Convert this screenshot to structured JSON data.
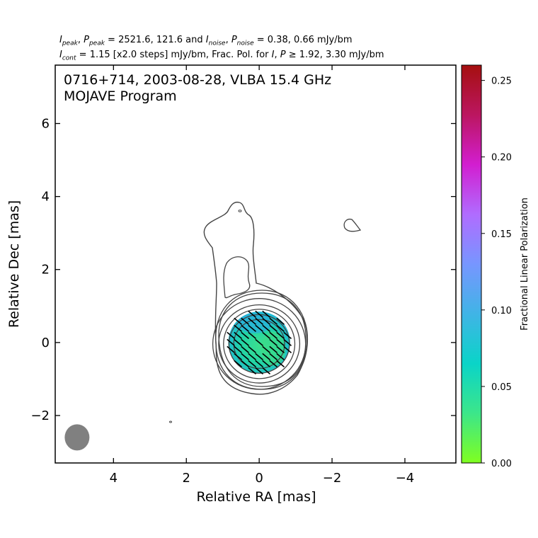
{
  "header": {
    "line1": {
      "sym1": "I",
      "sub1": "peak",
      "sep1": ", ",
      "sym2": "P",
      "sub2": "peak",
      "mid": " = 2521.6, 121.6 and ",
      "sym3": "I",
      "sub3": "noise",
      "sep2": ", ",
      "sym4": "P",
      "sub4": "noise",
      "tail": " = 0.38, 0.66 mJy/bm"
    },
    "line2": {
      "sym1": "I",
      "sub1": "cont",
      "mid": " = 1.15 [x2.0 steps] mJy/bm, Frac. Pol. for ",
      "sym2": "I",
      "sep": ", ",
      "sym3": "P",
      "tail": " ≥ 1.92, 3.30 mJy/bm"
    }
  },
  "chart_data": {
    "type": "heatmap",
    "title_line1": "0716+714, 2003-08-28, VLBA 15.4 GHz",
    "title_line2": "MOJAVE Program",
    "xlabel": "Relative RA [mas]",
    "ylabel": "Relative Dec [mas]",
    "xlim": [
      5.6,
      -5.4
    ],
    "ylim": [
      -3.3,
      7.6
    ],
    "xticks": [
      4,
      2,
      0,
      -2,
      -4
    ],
    "yticks": [
      -2,
      0,
      2,
      4,
      6
    ],
    "xtick_labels": [
      "4",
      "2",
      "0",
      "−2",
      "−4"
    ],
    "ytick_labels": [
      "−2",
      "0",
      "2",
      "4",
      "6"
    ],
    "contour_color": "#444444",
    "evpa_color": "#000000",
    "beam": {
      "ra": 5.0,
      "dec": -2.6,
      "major_mas": 0.72,
      "minor_mas": 0.68,
      "color": "#808080"
    },
    "colorbar": {
      "label": "Fractional Linear Polarization",
      "range": [
        0.0,
        0.26
      ],
      "ticks": [
        0.0,
        0.05,
        0.1,
        0.15,
        0.2,
        0.25
      ],
      "tick_labels": [
        "0.00",
        "0.05",
        "0.10",
        "0.15",
        "0.20",
        "0.25"
      ],
      "colors": [
        "#7fff20",
        "#3ce68a",
        "#0ad4c8",
        "#40b4e6",
        "#7796ff",
        "#b06cff",
        "#d21ed0",
        "#bb1660",
        "#a50f0f"
      ]
    },
    "core": {
      "ra": 0.0,
      "dec": 0.0
    },
    "polarization_region": {
      "ra": 0.0,
      "dec": 0.0,
      "radius_mas": 0.85,
      "frac_pol_core": 0.05,
      "frac_pol_north": 0.08
    },
    "evpa_angle_deg": -40
  }
}
